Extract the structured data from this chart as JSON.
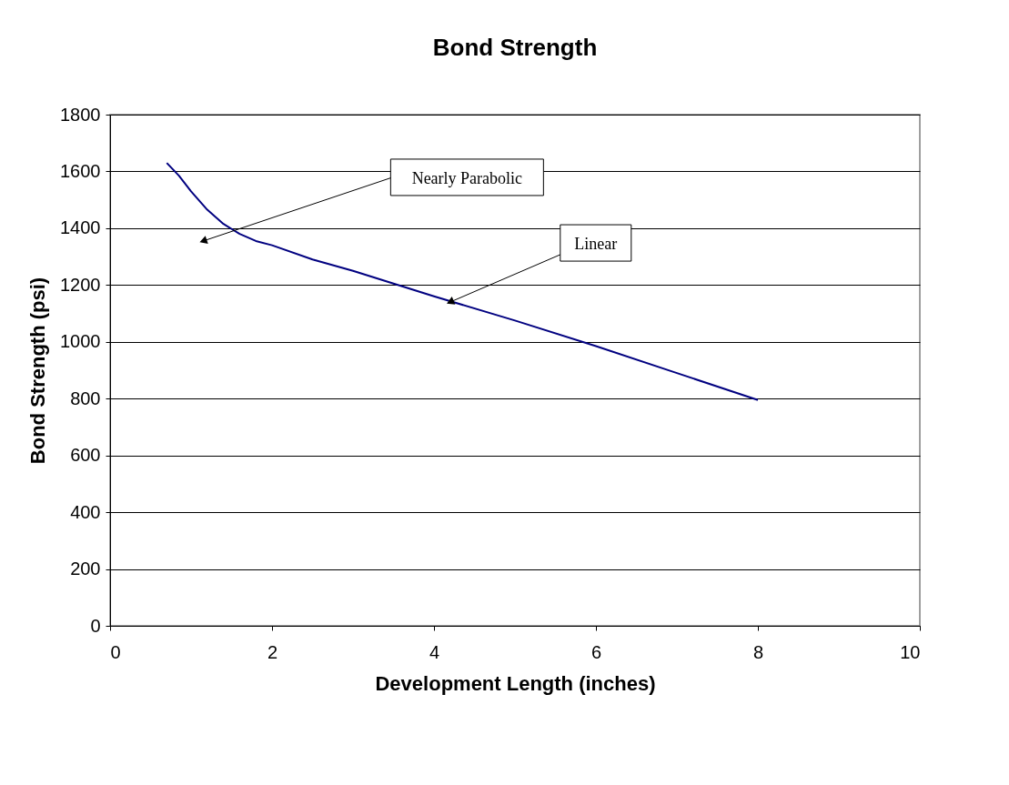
{
  "chart_data": {
    "type": "line",
    "title": "Bond Strength",
    "xlabel": "Development Length (inches)",
    "ylabel": "Bond Strength (psi)",
    "x": [
      0.7,
      0.85,
      1.0,
      1.2,
      1.4,
      1.6,
      1.8,
      2.0,
      2.5,
      3.0,
      3.5,
      4.0,
      5.0,
      6.0,
      7.0,
      8.0
    ],
    "series": [
      {
        "color": "#000080",
        "values": [
          1630,
          1585,
          1530,
          1465,
          1415,
          1380,
          1355,
          1340,
          1290,
          1250,
          1205,
          1160,
          1075,
          985,
          890,
          795
        ]
      }
    ],
    "xlim": [
      0,
      10
    ],
    "xticks": [
      0,
      2,
      4,
      6,
      8,
      10
    ],
    "ylim": [
      0,
      1800
    ],
    "yticks": [
      0,
      200,
      400,
      600,
      800,
      1000,
      1200,
      1400,
      1600,
      1800
    ],
    "grid": "y",
    "marker": "none",
    "line_style": "solid",
    "annotations": [
      {
        "text": "Nearly Parabolic",
        "x": 1.15,
        "y": 1355
      },
      {
        "text": "Linear",
        "x": 4.2,
        "y": 1140
      }
    ]
  }
}
